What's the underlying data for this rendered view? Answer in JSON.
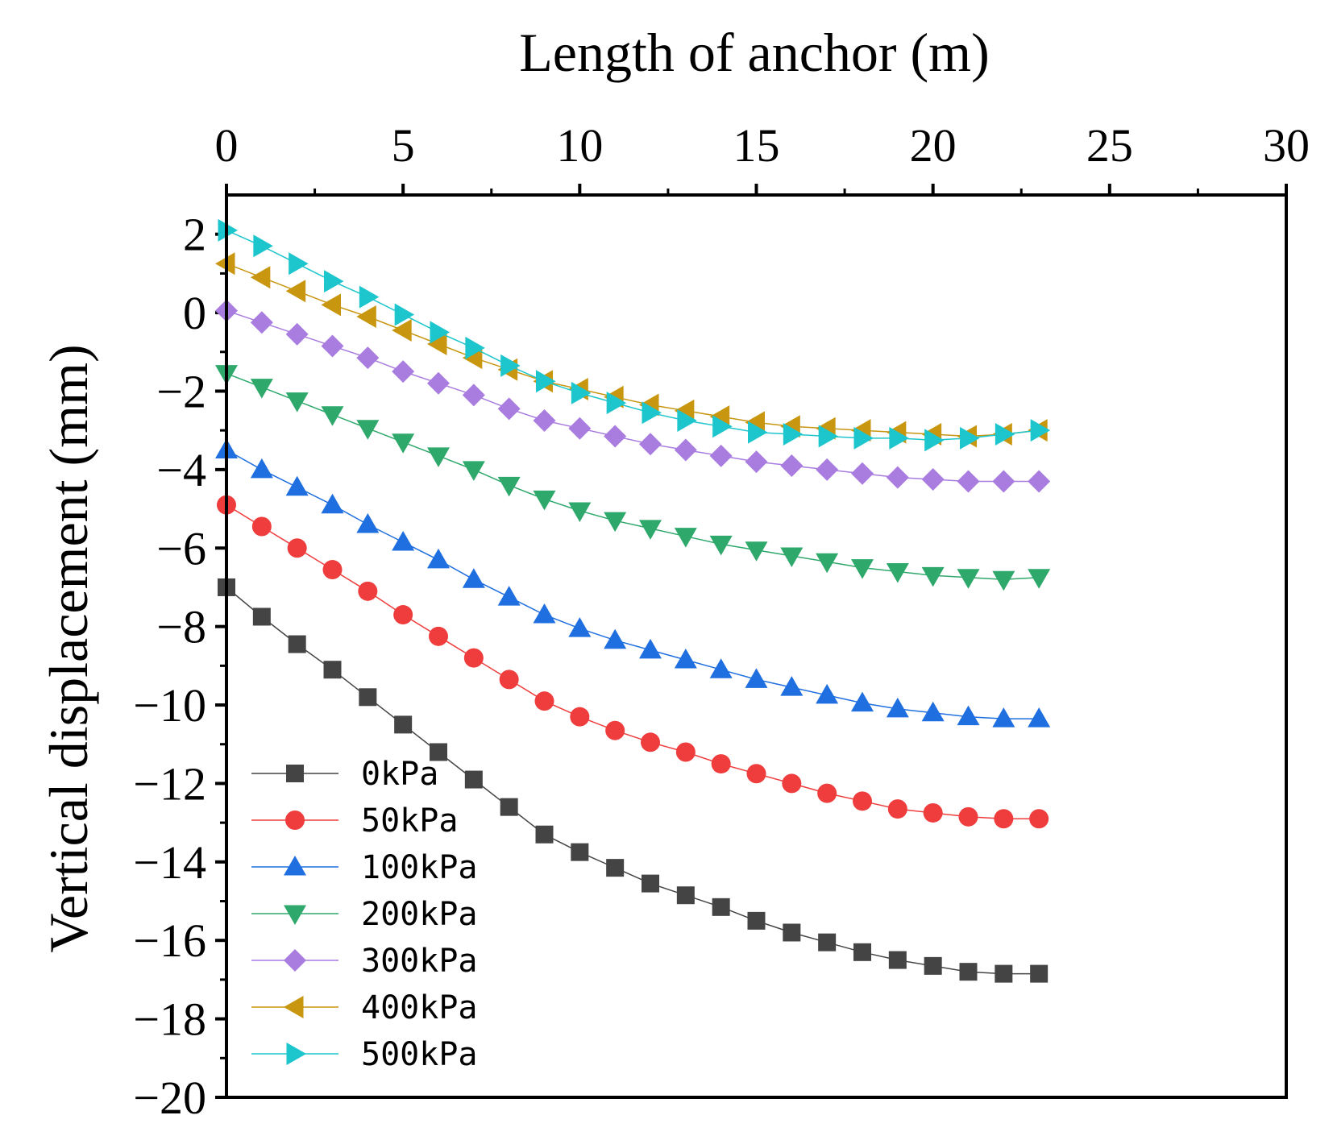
{
  "chart_data": {
    "type": "line",
    "title": "",
    "xlabel": "Length of anchor (m)",
    "ylabel": "Vertical displacement (mm)",
    "xlim": [
      0,
      30
    ],
    "ylim": [
      -20,
      3
    ],
    "xticks": [
      "0",
      "5",
      "10",
      "15",
      "20",
      "25",
      "30"
    ],
    "yticks": [
      "2",
      "0",
      "−2",
      "−4",
      "−6",
      "−8",
      "−10",
      "−12",
      "−14",
      "−16",
      "−18",
      "−20"
    ],
    "ytick_values": [
      2,
      0,
      -2,
      -4,
      -6,
      -8,
      -10,
      -12,
      -14,
      -16,
      -18,
      -20
    ],
    "xtick_values": [
      0,
      5,
      10,
      15,
      20,
      25,
      30
    ],
    "legend_position": "bottom-left",
    "x": [
      0,
      1,
      2,
      3,
      4,
      5,
      6,
      7,
      8,
      9,
      10,
      11,
      12,
      13,
      14,
      15,
      16,
      17,
      18,
      19,
      20,
      21,
      22,
      23
    ],
    "series": [
      {
        "name": "0kPa",
        "marker": "square",
        "color": "#444444",
        "values": [
          -7.0,
          -7.75,
          -8.45,
          -9.1,
          -9.8,
          -10.5,
          -11.2,
          -11.9,
          -12.6,
          -13.3,
          -13.75,
          -14.15,
          -14.55,
          -14.85,
          -15.15,
          -15.5,
          -15.8,
          -16.05,
          -16.3,
          -16.5,
          -16.65,
          -16.8,
          -16.85,
          -16.85
        ]
      },
      {
        "name": "50kPa",
        "marker": "circle",
        "color": "#ef3d3d",
        "values": [
          -4.9,
          -5.45,
          -6.0,
          -6.55,
          -7.1,
          -7.7,
          -8.25,
          -8.8,
          -9.35,
          -9.9,
          -10.3,
          -10.65,
          -10.95,
          -11.2,
          -11.5,
          -11.75,
          -12.0,
          -12.25,
          -12.45,
          -12.65,
          -12.75,
          -12.85,
          -12.9,
          -12.9
        ]
      },
      {
        "name": "100kPa",
        "marker": "triangle-up",
        "color": "#1f6fe0",
        "values": [
          -3.5,
          -4.0,
          -4.45,
          -4.9,
          -5.4,
          -5.85,
          -6.3,
          -6.8,
          -7.25,
          -7.7,
          -8.05,
          -8.35,
          -8.6,
          -8.85,
          -9.1,
          -9.35,
          -9.55,
          -9.75,
          -9.95,
          -10.1,
          -10.2,
          -10.3,
          -10.35,
          -10.35
        ]
      },
      {
        "name": "200kPa",
        "marker": "triangle-down",
        "color": "#2ea86b",
        "values": [
          -1.55,
          -1.9,
          -2.25,
          -2.6,
          -2.95,
          -3.3,
          -3.65,
          -4.0,
          -4.4,
          -4.75,
          -5.05,
          -5.3,
          -5.5,
          -5.7,
          -5.9,
          -6.05,
          -6.2,
          -6.35,
          -6.5,
          -6.6,
          -6.7,
          -6.75,
          -6.8,
          -6.75
        ]
      },
      {
        "name": "300kPa",
        "marker": "diamond",
        "color": "#a97ce0",
        "values": [
          0.05,
          -0.25,
          -0.55,
          -0.85,
          -1.15,
          -1.5,
          -1.8,
          -2.1,
          -2.45,
          -2.75,
          -2.95,
          -3.15,
          -3.35,
          -3.5,
          -3.65,
          -3.8,
          -3.9,
          -4.0,
          -4.1,
          -4.2,
          -4.25,
          -4.3,
          -4.3,
          -4.3
        ]
      },
      {
        "name": "400kPa",
        "marker": "triangle-left",
        "color": "#c8960f",
        "values": [
          1.25,
          0.9,
          0.55,
          0.2,
          -0.1,
          -0.45,
          -0.8,
          -1.15,
          -1.45,
          -1.75,
          -1.95,
          -2.15,
          -2.35,
          -2.5,
          -2.65,
          -2.8,
          -2.9,
          -2.95,
          -3.0,
          -3.05,
          -3.1,
          -3.15,
          -3.1,
          -3.0
        ]
      },
      {
        "name": "500kPa",
        "marker": "triangle-right",
        "color": "#1cc6cc",
        "values": [
          2.1,
          1.7,
          1.25,
          0.8,
          0.4,
          -0.05,
          -0.5,
          -0.9,
          -1.35,
          -1.75,
          -2.05,
          -2.3,
          -2.55,
          -2.75,
          -2.9,
          -3.05,
          -3.1,
          -3.15,
          -3.2,
          -3.2,
          -3.25,
          -3.2,
          -3.1,
          -3.0
        ]
      }
    ]
  }
}
